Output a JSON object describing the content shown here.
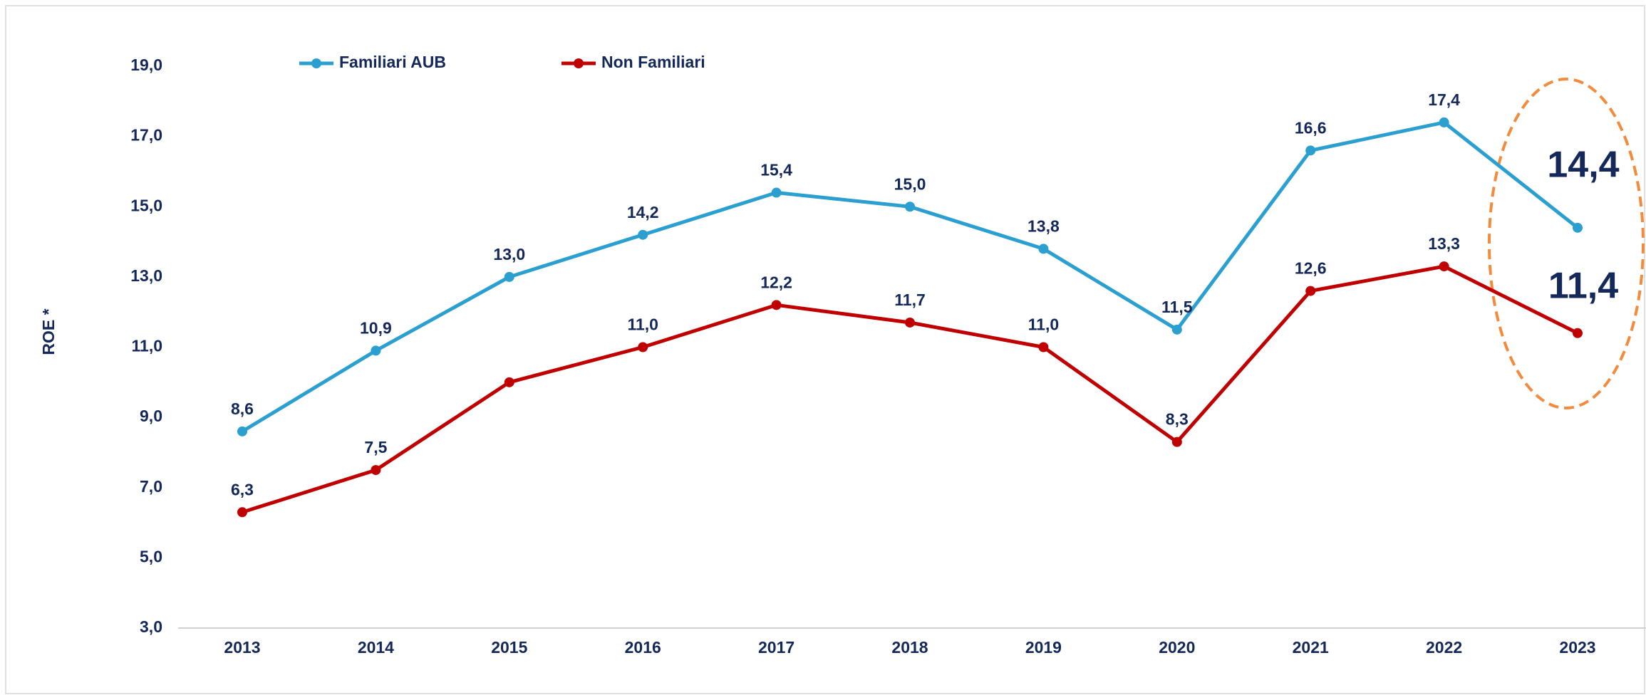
{
  "chart_data": {
    "type": "line",
    "ylabel": "ROE *",
    "categories": [
      "2013",
      "2014",
      "2015",
      "2016",
      "2017",
      "2018",
      "2019",
      "2020",
      "2021",
      "2022",
      "2023"
    ],
    "series": [
      {
        "name": "Familiari AUB",
        "color": "#2a9fd0",
        "values": [
          8.6,
          10.9,
          13.0,
          14.2,
          15.4,
          15.0,
          13.8,
          11.5,
          16.6,
          17.4,
          14.4
        ],
        "value_labels": [
          "8,6",
          "10,9",
          "13,0",
          "14,2",
          "15,4",
          "15,0",
          "13,8",
          "11,5",
          "16,6",
          "17,4",
          "14,4"
        ]
      },
      {
        "name": "Non Familiari",
        "color": "#c00000",
        "values": [
          6.3,
          7.5,
          10.0,
          11.0,
          12.2,
          11.7,
          11.0,
          8.3,
          12.6,
          13.3,
          11.4
        ],
        "value_labels": [
          "6,3",
          "7,5",
          null,
          "11,0",
          "12,2",
          "11,7",
          "11,0",
          "8,3",
          "12,6",
          "13,3",
          "11,4"
        ]
      }
    ],
    "ylim": [
      3,
      19
    ],
    "yticks": [
      {
        "value": 3,
        "label": "3,0"
      },
      {
        "value": 5,
        "label": "5,0"
      },
      {
        "value": 7,
        "label": "7,0"
      },
      {
        "value": 9,
        "label": "9,0"
      },
      {
        "value": 11,
        "label": "11,0"
      },
      {
        "value": 13,
        "label": "13,0"
      },
      {
        "value": 15,
        "label": "15,0"
      },
      {
        "value": 17,
        "label": "17,0"
      },
      {
        "value": 19,
        "label": "19,0"
      }
    ],
    "legend": "top-left"
  }
}
